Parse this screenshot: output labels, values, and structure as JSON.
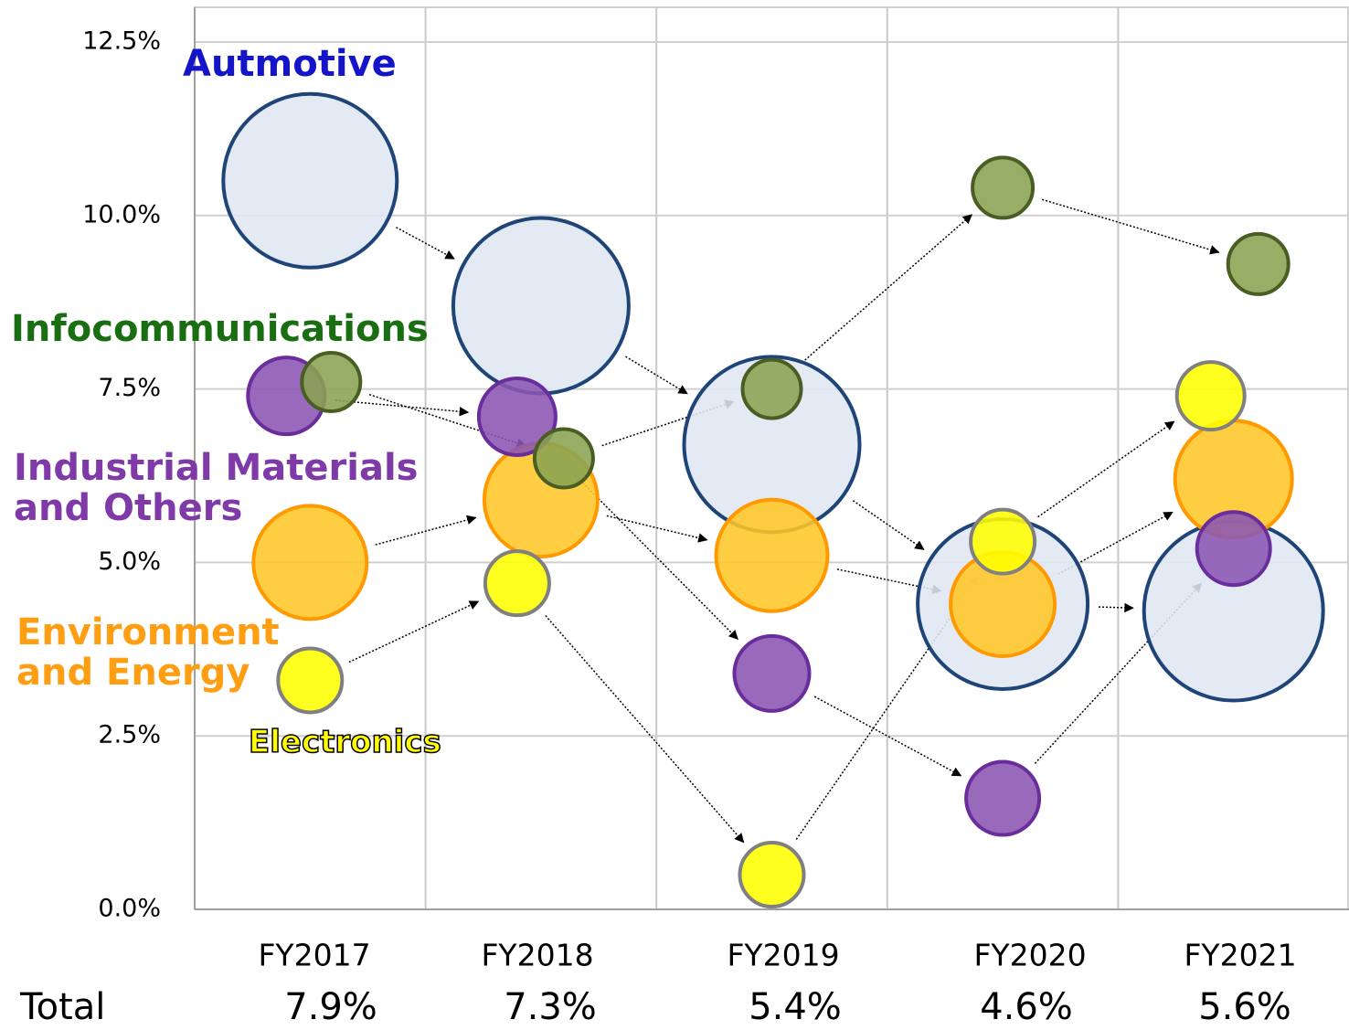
{
  "chart_data": {
    "type": "bubble",
    "categories": [
      "FY2017",
      "FY2018",
      "FY2019",
      "FY2020",
      "FY2021"
    ],
    "ylim": [
      0,
      13
    ],
    "yticks": [
      {
        "value": 0,
        "label": "0.0%"
      },
      {
        "value": 2.5,
        "label": "2.5%"
      },
      {
        "value": 5,
        "label": "5.0%"
      },
      {
        "value": 7.5,
        "label": "7.5%"
      },
      {
        "value": 10,
        "label": "10.0%"
      },
      {
        "value": 12.5,
        "label": "12.5%"
      }
    ],
    "grid": true,
    "series": [
      {
        "name": "Autmotive",
        "label_color": "#1414c8",
        "color": "#dfe7f2",
        "edge": "#1f4478",
        "values": [
          10.5,
          8.7,
          6.7,
          4.4,
          4.3
        ],
        "sizes": [
          95,
          96,
          96,
          93,
          98
        ]
      },
      {
        "name": "Environment\nand Energy",
        "label_color": "#ff9e12",
        "color": "#ffc627",
        "edge": "#ff9900",
        "values": [
          5.0,
          5.9,
          5.1,
          4.4,
          6.2
        ],
        "sizes": [
          62,
          62,
          61,
          57,
          64
        ]
      },
      {
        "name": "Industrial Materials\nand Others",
        "label_color": "#7f3aa8",
        "color": "#8b55b3",
        "edge": "#6a2d9c",
        "values": [
          7.4,
          7.1,
          3.4,
          1.6,
          5.2
        ],
        "sizes": [
          42,
          42,
          41,
          40,
          40
        ]
      },
      {
        "name": "Electronics",
        "label_color": "#ffff00",
        "color": "#ffff00",
        "edge": "#808080",
        "values": [
          3.3,
          4.7,
          0.5,
          5.3,
          7.4
        ],
        "sizes": [
          35,
          35,
          35,
          35,
          37
        ]
      },
      {
        "name": "Infocommunications",
        "label_color": "#1a6e12",
        "color": "#8aa352",
        "edge": "#4a5e24",
        "values": [
          7.6,
          6.5,
          7.5,
          10.4,
          9.3
        ],
        "sizes": [
          32,
          32,
          32,
          33,
          33
        ]
      }
    ],
    "total_label": "Total",
    "totals": [
      7.9,
      7.3,
      5.4,
      4.6,
      5.6
    ],
    "totals_labels": [
      "7.9%",
      "7.3%",
      "5.4%",
      "4.6%",
      "5.6%"
    ]
  }
}
